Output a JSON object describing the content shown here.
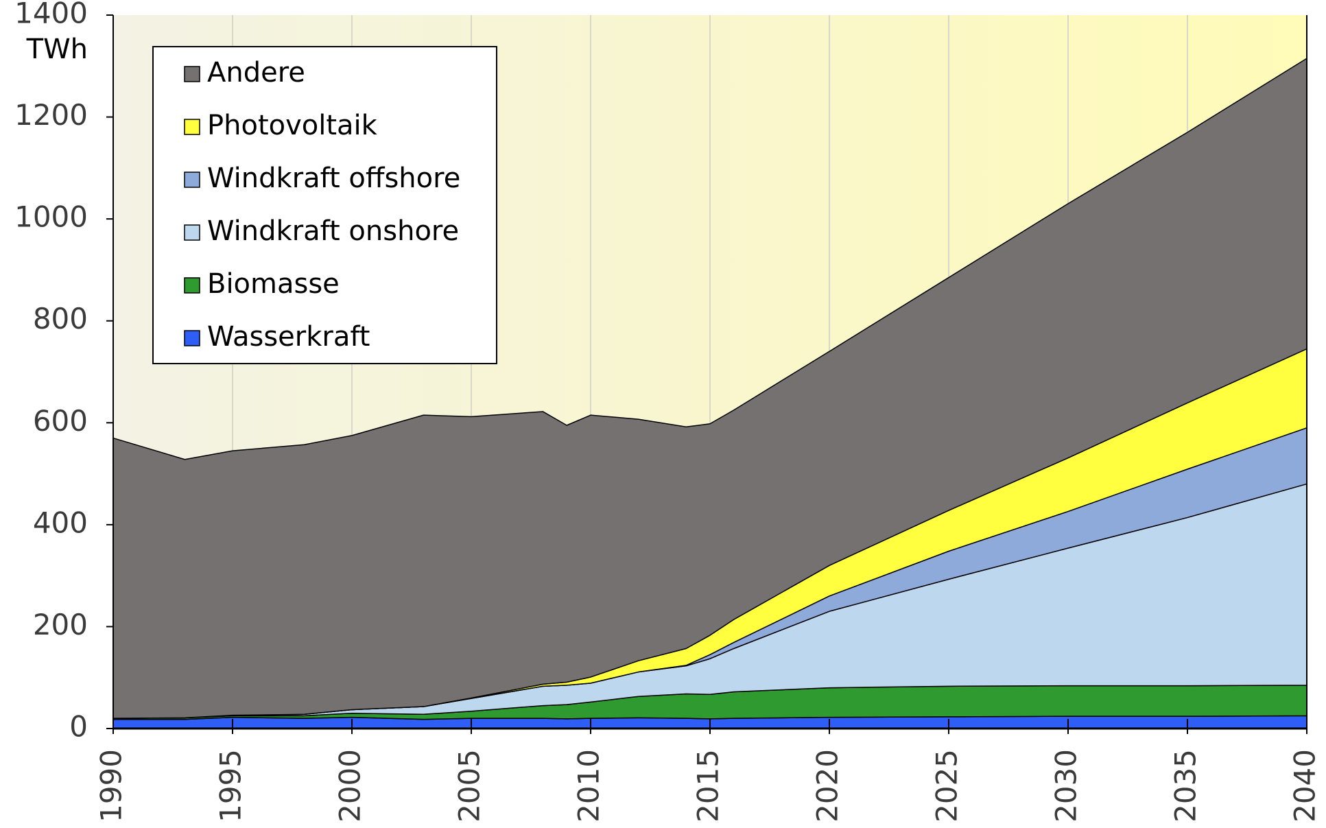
{
  "chart_data": {
    "type": "stacked_area",
    "x": [
      1990,
      1993,
      1995,
      1998,
      2000,
      2003,
      2005,
      2008,
      2009,
      2010,
      2012,
      2014,
      2015,
      2016,
      2020,
      2025,
      2030,
      2035,
      2040
    ],
    "series": [
      {
        "name": "Wasserkraft",
        "color": "#2e5ef5",
        "values": [
          18,
          18,
          22,
          20,
          22,
          18,
          20,
          20,
          19,
          20,
          21,
          20,
          19,
          20,
          22,
          23,
          24,
          24,
          25
        ]
      },
      {
        "name": "Biomasse",
        "color": "#2e9a30",
        "values": [
          2,
          3,
          3,
          5,
          8,
          10,
          14,
          25,
          28,
          32,
          42,
          48,
          48,
          52,
          58,
          60,
          60,
          60,
          60
        ]
      },
      {
        "name": "Windkraft onshore",
        "color": "#bdd7ee",
        "values": [
          0,
          0,
          1,
          3,
          7,
          15,
          25,
          38,
          38,
          37,
          48,
          55,
          70,
          85,
          150,
          210,
          270,
          330,
          395
        ]
      },
      {
        "name": "Windkraft offshore",
        "color": "#8eaadb",
        "values": [
          0,
          0,
          0,
          0,
          0,
          0,
          0,
          0,
          0,
          0,
          0,
          1,
          8,
          12,
          30,
          55,
          72,
          95,
          110
        ]
      },
      {
        "name": "Photovoltaik",
        "color": "#ffff40",
        "values": [
          0,
          0,
          0,
          0,
          0,
          0,
          1,
          4,
          6,
          12,
          22,
          33,
          38,
          45,
          60,
          80,
          105,
          130,
          155
        ]
      },
      {
        "name": "Andere",
        "color": "#767171",
        "values": [
          550,
          507,
          519,
          529,
          538,
          572,
          552,
          535,
          504,
          514,
          474,
          435,
          415,
          411,
          420,
          457,
          499,
          531,
          570
        ]
      }
    ],
    "y_unit": "TWh",
    "xlim": [
      1990,
      2040
    ],
    "xticks": [
      1990,
      1995,
      2000,
      2005,
      2010,
      2015,
      2020,
      2025,
      2030,
      2035,
      2040
    ],
    "ylim": [
      0,
      1400
    ],
    "yticks": [
      0,
      200,
      400,
      600,
      800,
      1000,
      1200,
      1400
    ],
    "grid": true,
    "legend": "top-left"
  }
}
